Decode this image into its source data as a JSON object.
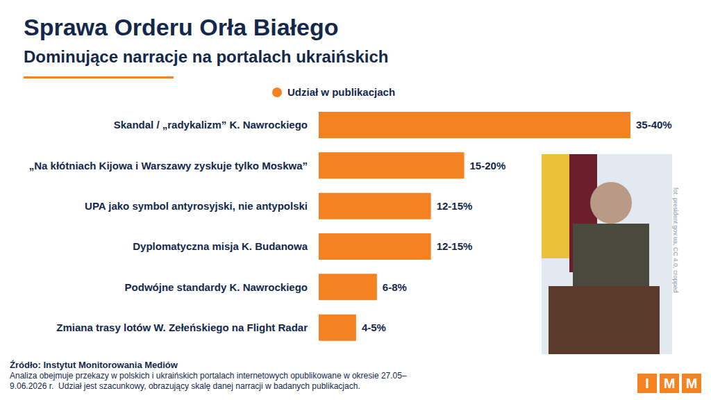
{
  "chart_data": {
    "type": "bar",
    "orientation": "horizontal",
    "title": "Sprawa Orderu Orła Białego",
    "subtitle": "Dominujące narracje na portalach ukraińskich",
    "categories": [
      "Skandal / „radykalizm” K. Nawrockiego",
      "„Na kłótniach Kijowa i Warszawy zyskuje tylko Moskwa”",
      "UPA jako symbol antyrosyjski, nie antypolski",
      "Dyplomatyczna misja K. Budanowa",
      "Podwójne standardy K. Nawrockiego",
      "Zmiana trasy lotów W. Zełeńskiego na Flight Radar"
    ],
    "series": [
      {
        "name": "Udział w publikacjach",
        "color": "#f58220",
        "values": [
          37.5,
          17.5,
          13.5,
          13.5,
          7,
          4.5
        ],
        "value_labels": [
          "35-40%",
          "15-20%",
          "12-15%",
          "12-15%",
          "6-8%",
          "4-5%"
        ]
      }
    ],
    "xlim": [
      0,
      37.5
    ],
    "data_labels": true,
    "tick_labels": "y",
    "legend": "top",
    "grid": false,
    "source": "Źródło: Instytut Monitorowania Mediów",
    "note": "Analiza obejmuje przekazy w polskich i ukraińskich portalach internetowych opublikowane w okresie 27.05–9.06.2026 r.  Udział jest szacunkowy, obrazujący skalę danej narracji w badanych publikacjach.",
    "photo_credit": "fot. president.gov.ua, CC 4.0, cropped",
    "logo": [
      "I",
      "M",
      "M"
    ]
  }
}
